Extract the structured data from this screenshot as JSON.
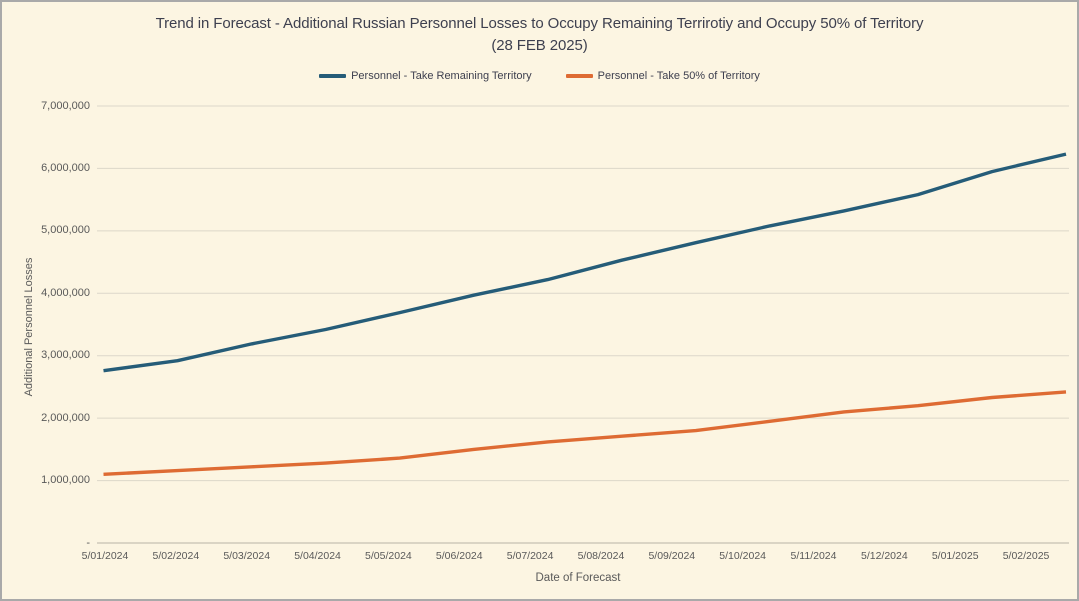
{
  "chart_data": {
    "type": "line",
    "title": "Trend in Forecast - Additional Russian Personnel Losses to Occupy Remaining Terrirotiy and Occupy 50% of Territory",
    "subtitle": "(28 FEB 2025)",
    "xlabel": "Date of Forecast",
    "ylabel": "Additional Personnel Losses",
    "legend_position": "top",
    "grid": true,
    "ylim": [
      0,
      7000000
    ],
    "categories": [
      "5/01/2024",
      "5/02/2024",
      "5/03/2024",
      "5/04/2024",
      "5/05/2024",
      "5/06/2024",
      "5/07/2024",
      "5/08/2024",
      "5/09/2024",
      "5/10/2024",
      "5/11/2024",
      "5/12/2024",
      "5/01/2025",
      "5/02/2025"
    ],
    "series": [
      {
        "name": "Personnel - Take Remaining Territory",
        "color": "#255C78",
        "values": [
          2760000,
          2920000,
          3190000,
          3420000,
          3690000,
          3970000,
          4220000,
          4530000,
          4810000,
          5080000,
          5320000,
          5580000,
          5950000,
          6230000
        ]
      },
      {
        "name": "Personnel - Take 50% of Territory",
        "color": "#DE6B33",
        "values": [
          1100000,
          1160000,
          1220000,
          1280000,
          1360000,
          1500000,
          1620000,
          1710000,
          1800000,
          1950000,
          2100000,
          2200000,
          2330000,
          2420000
        ]
      }
    ],
    "y_ticks": [
      {
        "value": 0,
        "label": "-"
      },
      {
        "value": 1000000,
        "label": "1,000,000"
      },
      {
        "value": 2000000,
        "label": "2,000,000"
      },
      {
        "value": 3000000,
        "label": "3,000,000"
      },
      {
        "value": 4000000,
        "label": "4,000,000"
      },
      {
        "value": 5000000,
        "label": "5,000,000"
      },
      {
        "value": 6000000,
        "label": "6,000,000"
      },
      {
        "value": 7000000,
        "label": "7,000,000"
      }
    ]
  },
  "colors": {
    "background": "#FCF5E2",
    "frame_border": "#A9A9A9",
    "gridline": "#DCD7C9",
    "axis_line": "#B8B3A6",
    "title_text": "#3E404F",
    "tick_text": "#595959"
  }
}
